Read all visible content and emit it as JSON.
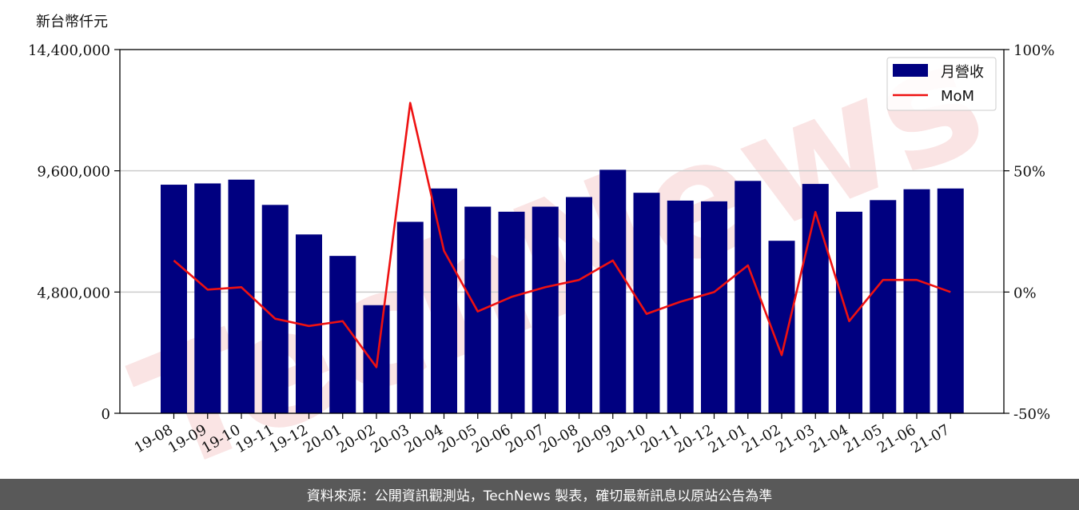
{
  "chart_data": {
    "type": "bar+line",
    "y_unit_label": "新台幣仟元",
    "categories": [
      "19-08",
      "19-09",
      "19-10",
      "19-11",
      "19-12",
      "20-01",
      "20-02",
      "20-03",
      "20-04",
      "20-05",
      "20-06",
      "20-07",
      "20-08",
      "20-09",
      "20-10",
      "20-11",
      "20-12",
      "21-01",
      "21-02",
      "21-03",
      "21-04",
      "21-05",
      "21-06",
      "21-07"
    ],
    "series": [
      {
        "name": "月營收",
        "axis": "left",
        "color": "#000080",
        "values": [
          9050000,
          9100000,
          9250000,
          8250000,
          7080000,
          6230000,
          4280000,
          7580000,
          8900000,
          8180000,
          7980000,
          8180000,
          8560000,
          9640000,
          8730000,
          8420000,
          8390000,
          9200000,
          6830000,
          9080000,
          7980000,
          8440000,
          8870000,
          8900000
        ]
      },
      {
        "name": "MoM",
        "axis": "right",
        "color": "#ee1111",
        "values": [
          13,
          1,
          2,
          -11,
          -14,
          -12,
          -31,
          78,
          17,
          -8,
          -2,
          2,
          5,
          13,
          -9,
          -4,
          0,
          11,
          -26,
          33,
          -12,
          5,
          5,
          0
        ]
      }
    ],
    "y_left_ticks": [
      "0",
      "4,800,000",
      "9,600,000",
      "14,400,000"
    ],
    "y_left_range": [
      0,
      14400000
    ],
    "y_right_ticks": [
      "-50%",
      "0%",
      "50%",
      "100%"
    ],
    "y_right_range": [
      -50,
      100
    ],
    "grid": "horizontal",
    "legend_position": "top-right"
  },
  "watermark": "TechNews",
  "footer": "資料來源：公開資訊觀測站，TechNews 製表，確切最新訊息以原站公告為準"
}
